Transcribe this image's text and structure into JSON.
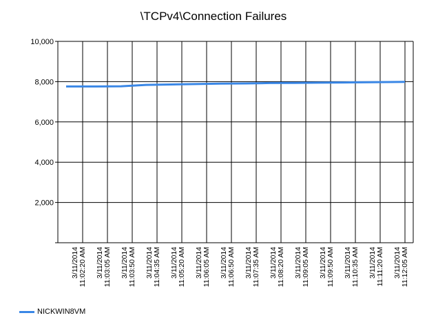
{
  "chart_data": {
    "type": "line",
    "title": "\\TCPv4\\Connection Failures",
    "xlabel": "",
    "ylabel": "",
    "ylim": [
      0,
      10000
    ],
    "y_ticks": [
      "",
      "2,000",
      "4,000",
      "6,000",
      "8,000",
      "10,000"
    ],
    "grid": true,
    "legend_position": "bottom-left",
    "x": [
      [
        "3/11/2014",
        "11:02:20 AM"
      ],
      [
        "3/11/2014",
        "11:03:05 AM"
      ],
      [
        "3/11/2014",
        "11:03:50 AM"
      ],
      [
        "3/11/2014",
        "11:04:35 AM"
      ],
      [
        "3/11/2014",
        "11:05:20 AM"
      ],
      [
        "3/11/2014",
        "11:06:05 AM"
      ],
      [
        "3/11/2014",
        "11:06:50 AM"
      ],
      [
        "3/11/2014",
        "11:07:35 AM"
      ],
      [
        "3/11/2014",
        "11:08:20 AM"
      ],
      [
        "3/11/2014",
        "11:09:05 AM"
      ],
      [
        "3/11/2014",
        "11:09:50 AM"
      ],
      [
        "3/11/2014",
        "11:10:35 AM"
      ],
      [
        "3/11/2014",
        "11:11:20 AM"
      ],
      [
        "3/11/2014",
        "11:12:05 AM"
      ]
    ],
    "series": [
      {
        "name": "NICKWIN8VM",
        "color": "#3a87e6",
        "values": [
          7760,
          7770,
          7840,
          7860,
          7880,
          7900,
          7910,
          7930,
          7940,
          7950,
          7960,
          7970,
          7990,
          8000
        ]
      }
    ]
  }
}
